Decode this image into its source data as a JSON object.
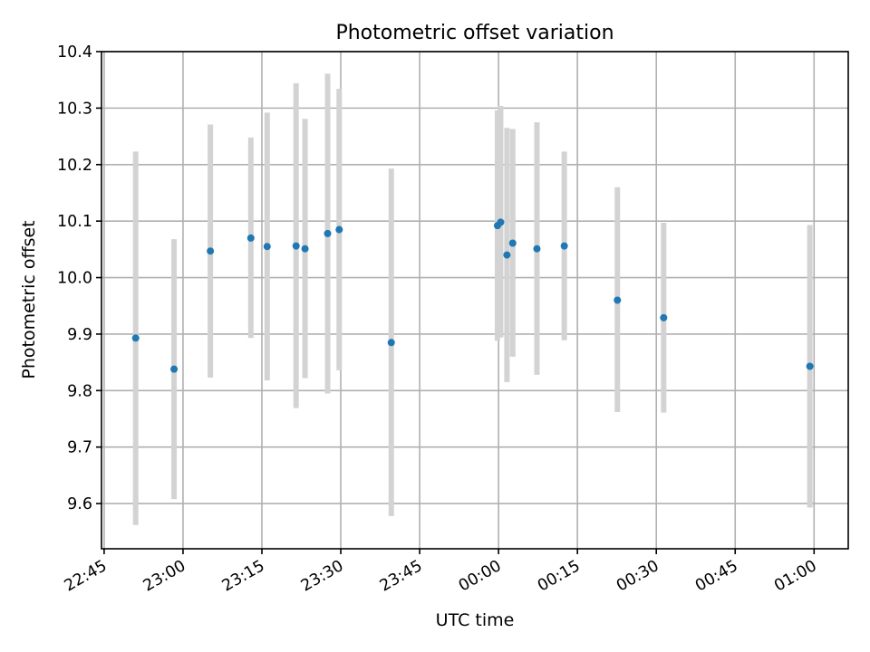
{
  "chart_data": {
    "type": "scatter",
    "title": "Photometric offset variation",
    "xlabel": "UTC time",
    "ylabel": "Photometric offset",
    "colors": {
      "point": "#1f77b4",
      "errorbar": "#d3d3d3",
      "grid": "#b0b0b0"
    },
    "grid": true,
    "x_ticks": [
      "22:45",
      "23:00",
      "23:15",
      "23:30",
      "23:45",
      "00:00",
      "00:15",
      "00:30",
      "00:45",
      "01:00"
    ],
    "x_tick_offsets_min": [
      0,
      15,
      30,
      45,
      60,
      75,
      90,
      105,
      120,
      135
    ],
    "xlim_min": [
      -0.5,
      141.5
    ],
    "y_ticks": [
      "9.6",
      "9.7",
      "9.8",
      "9.9",
      "10.0",
      "10.1",
      "10.2",
      "10.3",
      "10.4"
    ],
    "ylim": [
      9.52,
      10.4
    ],
    "series": [
      {
        "points": [
          {
            "t": 6.0,
            "y": 9.893,
            "lo": 9.562,
            "hi": 10.223
          },
          {
            "t": 13.3,
            "y": 9.838,
            "lo": 9.608,
            "hi": 10.068
          },
          {
            "t": 20.2,
            "y": 10.047,
            "lo": 9.823,
            "hi": 10.271
          },
          {
            "t": 27.9,
            "y": 10.07,
            "lo": 9.893,
            "hi": 10.248
          },
          {
            "t": 31.0,
            "y": 10.055,
            "lo": 9.818,
            "hi": 10.292
          },
          {
            "t": 36.5,
            "y": 10.056,
            "lo": 9.769,
            "hi": 10.344
          },
          {
            "t": 38.2,
            "y": 10.051,
            "lo": 9.822,
            "hi": 10.281
          },
          {
            "t": 42.5,
            "y": 10.078,
            "lo": 9.795,
            "hi": 10.361
          },
          {
            "t": 44.7,
            "y": 10.085,
            "lo": 9.836,
            "hi": 10.334
          },
          {
            "t": 54.6,
            "y": 9.885,
            "lo": 9.578,
            "hi": 10.193
          },
          {
            "t": 74.8,
            "y": 10.092,
            "lo": 9.888,
            "hi": 10.296
          },
          {
            "t": 75.4,
            "y": 10.098,
            "lo": 9.894,
            "hi": 10.304
          },
          {
            "t": 76.6,
            "y": 10.04,
            "lo": 9.815,
            "hi": 10.265
          },
          {
            "t": 77.7,
            "y": 10.061,
            "lo": 9.86,
            "hi": 10.263
          },
          {
            "t": 82.3,
            "y": 10.051,
            "lo": 9.828,
            "hi": 10.275
          },
          {
            "t": 87.5,
            "y": 10.056,
            "lo": 9.889,
            "hi": 10.223
          },
          {
            "t": 97.6,
            "y": 9.96,
            "lo": 9.762,
            "hi": 10.16
          },
          {
            "t": 106.4,
            "y": 9.929,
            "lo": 9.761,
            "hi": 10.097
          },
          {
            "t": 134.2,
            "y": 9.843,
            "lo": 9.593,
            "hi": 10.093
          }
        ]
      }
    ]
  }
}
